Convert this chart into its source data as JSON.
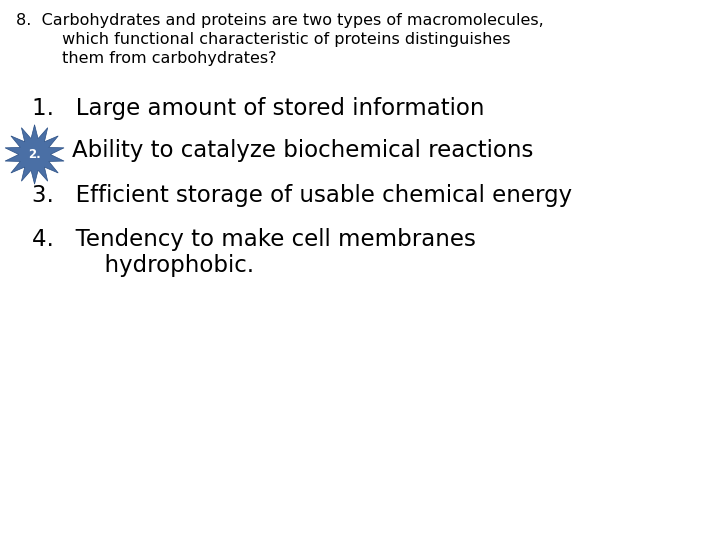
{
  "background_color": "#ffffff",
  "q_line1": "8.  Carbohydrates and proteins are two types of macromolecules,",
  "q_line2": "         which functional characteristic of proteins distinguishes",
  "q_line3": "         them from carbohydrates?",
  "a1": "1.   Large amount of stored information",
  "a2_text": "Ability to catalyze biochemical reactions",
  "a3": "3.   Efficient storage of usable chemical energy",
  "a4_line1": "4.   Tendency to make cell membranes",
  "a4_line2": "          hydrophobic.",
  "text_color": "#000000",
  "star_color": "#4a6fa5",
  "q_fontsize": 11.5,
  "a_fontsize": 16.5,
  "figsize": [
    7.2,
    5.4
  ],
  "dpi": 100
}
